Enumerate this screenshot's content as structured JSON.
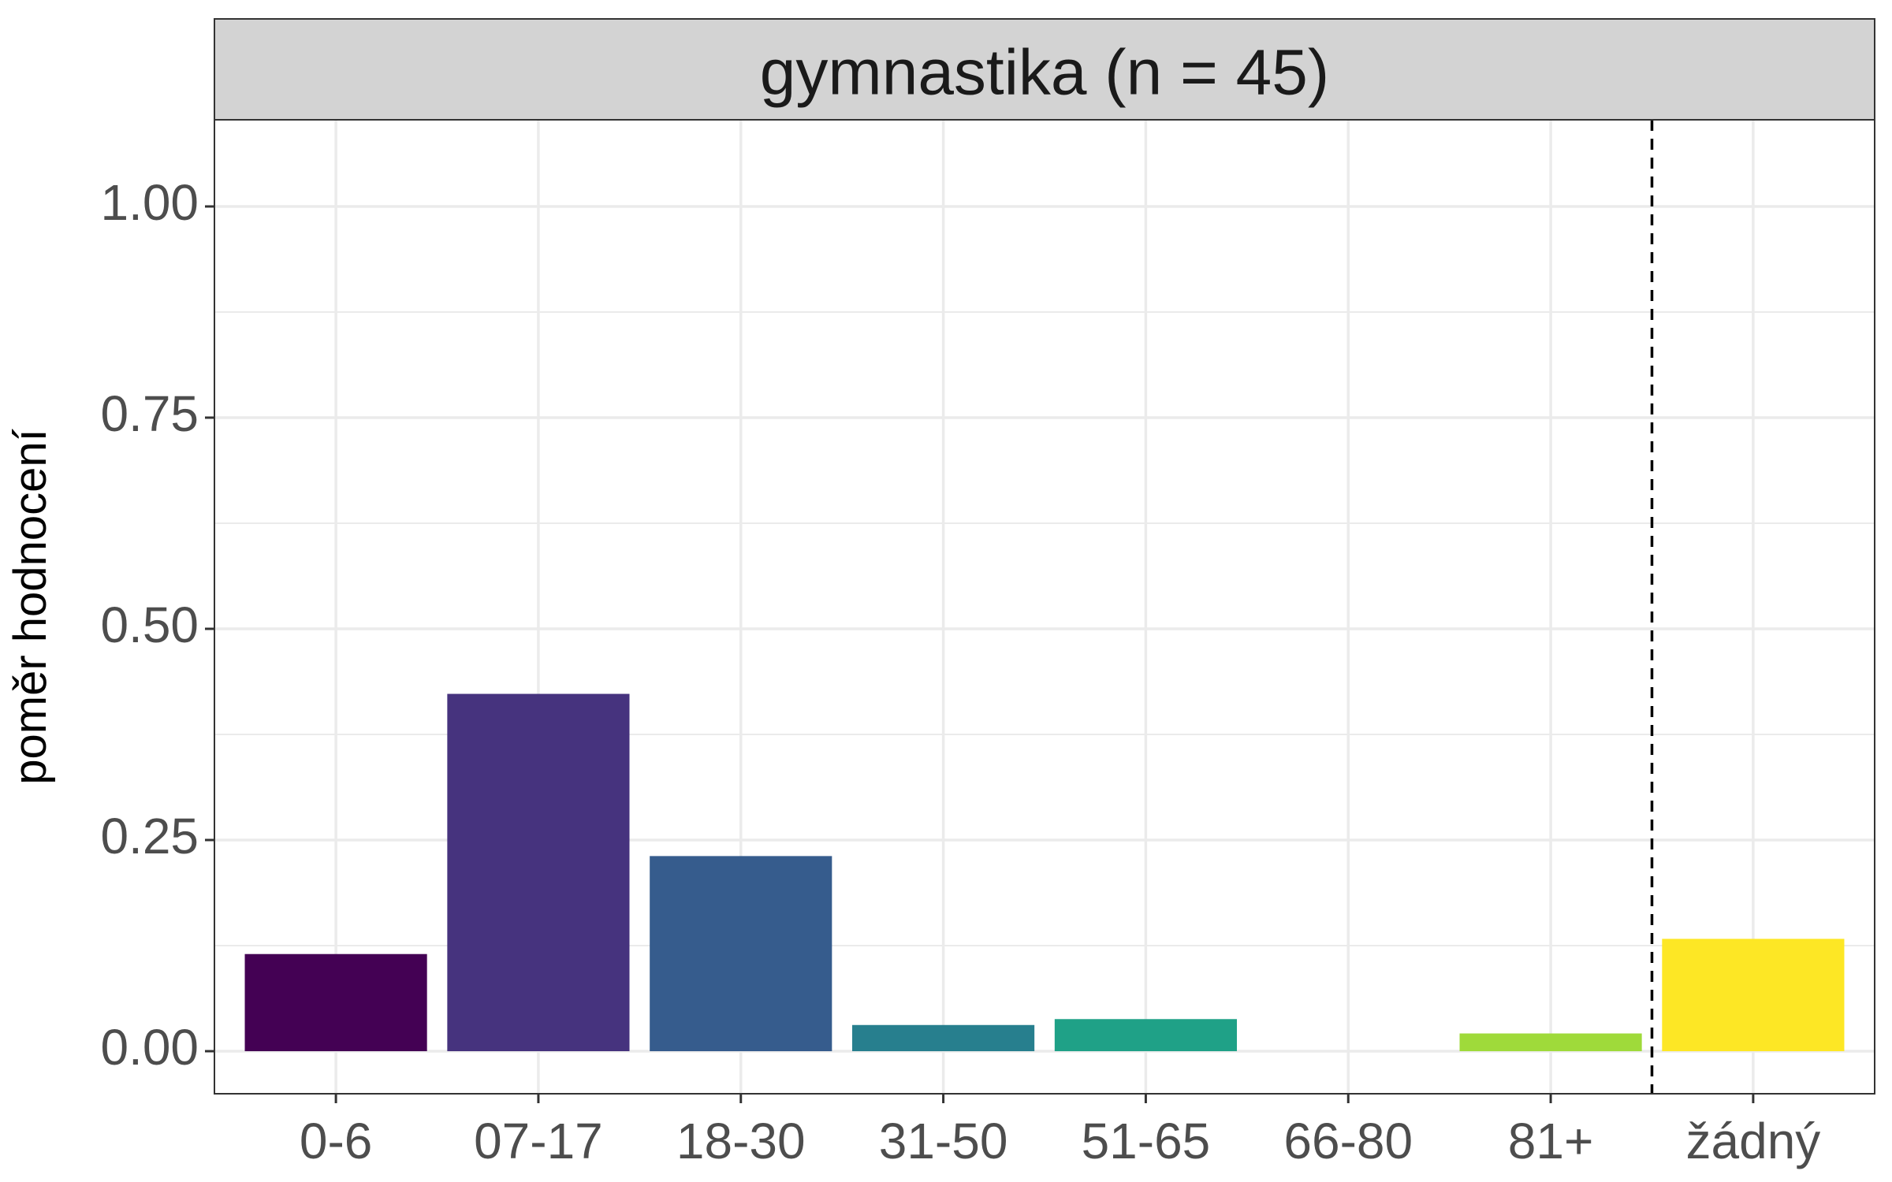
{
  "chart_data": {
    "type": "bar",
    "title": "gymnastika (n = 45)",
    "xlabel": "",
    "ylabel": "poměr hodnocení",
    "categories": [
      "0-6",
      "07-17",
      "18-30",
      "31-50",
      "51-65",
      "66-80",
      "81+",
      "žádný"
    ],
    "values": [
      0.115,
      0.423,
      0.231,
      0.031,
      0.038,
      0.0,
      0.021,
      0.133
    ],
    "colors": [
      "#440154",
      "#46337E",
      "#365C8D",
      "#277F8E",
      "#1FA187",
      "#4AC16D",
      "#9FDA3A",
      "#FDE725"
    ],
    "ylim": [
      0,
      1.1
    ],
    "yticks": [
      "0.00",
      "0.25",
      "0.50",
      "0.75",
      "1.00"
    ],
    "grid": true,
    "legend": "none",
    "reference_line": {
      "position": "between 81+ and žádný",
      "style": "dashed",
      "color": "#000000"
    }
  }
}
